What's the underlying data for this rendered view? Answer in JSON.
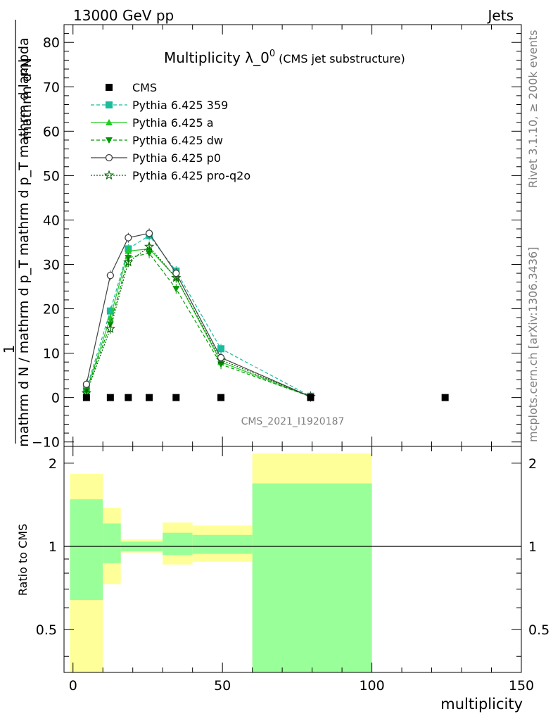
{
  "header": {
    "left": "13000 GeV pp",
    "right": "Jets"
  },
  "side_labels": {
    "rivet": "Rivet 3.1.10, ≥ 200k events",
    "mcplots": "mcplots.cern.ch [arXiv:1306.3436]"
  },
  "chart_data": {
    "type": "line",
    "title": "Multiplicity λ_0^0 (CMS jet substructure)",
    "title_main": "Multiplicity λ_0",
    "title_sup": "0",
    "title_sub": "(CMS jet substructure)",
    "analysis_id": "CMS_2021_I1920187",
    "xlabel": "multiplicity",
    "ylabel": "1 / mathrm d N / mathrm d p_T mathrm d p_T mathrm d lambda · mathrm d^2N",
    "ylabel_numerator": "mathrm d²N",
    "ylabel_denominator": "mathrm d N / mathrm d p_T mathrm d p_T mathrm d lambda",
    "ylabel_one": "1",
    "xlim": [
      -3,
      150
    ],
    "ylim": [
      -11,
      84
    ],
    "x_ticks": [
      0,
      50,
      100,
      150
    ],
    "y_ticks": [
      -10,
      0,
      10,
      20,
      30,
      40,
      50,
      60,
      70,
      80
    ],
    "x": [
      4.5,
      12.5,
      18.5,
      25.5,
      34.5,
      49.5,
      79.5
    ],
    "series": [
      {
        "name": "CMS",
        "color": "#000000",
        "marker": "square",
        "line": "none",
        "x": [
          4.5,
          12.5,
          18.5,
          25.5,
          34.5,
          49.5,
          79.5,
          124.5
        ],
        "values": [
          0,
          0,
          0,
          0,
          0,
          0,
          0,
          0
        ]
      },
      {
        "name": "Pythia 6.425 359",
        "color": "#1abc9c",
        "marker": "square",
        "line": "dashed",
        "values": [
          2.0,
          19.5,
          33.5,
          36.5,
          28.5,
          11.0,
          0.3
        ]
      },
      {
        "name": "Pythia 6.425 a",
        "color": "#22cc22",
        "marker": "triangle-up",
        "line": "solid",
        "values": [
          1.5,
          18.0,
          33.0,
          33.5,
          27.0,
          8.0,
          0.2
        ]
      },
      {
        "name": "Pythia 6.425 dw",
        "color": "#009900",
        "marker": "triangle-down",
        "line": "dashed",
        "values": [
          1.5,
          16.5,
          31.5,
          32.5,
          24.5,
          7.5,
          0.2
        ]
      },
      {
        "name": "Pythia 6.425 p0",
        "color": "#404040",
        "marker": "open-circle",
        "line": "solid",
        "values": [
          3.0,
          27.5,
          36.0,
          37.0,
          28.0,
          9.0,
          0.2
        ]
      },
      {
        "name": "Pythia 6.425 pro-q2o",
        "color": "#006600",
        "marker": "open-star",
        "line": "dotted",
        "values": [
          1.0,
          15.5,
          30.5,
          34.0,
          27.0,
          8.5,
          0.2
        ]
      }
    ],
    "ratio": {
      "ylabel": "Ratio to CMS",
      "ylim": [
        0.35,
        2.3
      ],
      "y_ticks": [
        0.5,
        1,
        2
      ],
      "y_tick_labels": [
        "0.5",
        "1",
        "2"
      ],
      "bins": [
        {
          "lo": -1,
          "hi": 10,
          "yellow": [
            0.3,
            1.83
          ],
          "green": [
            0.64,
            1.48
          ]
        },
        {
          "lo": 10,
          "hi": 16,
          "yellow": [
            0.73,
            1.38
          ],
          "green": [
            0.87,
            1.21
          ]
        },
        {
          "lo": 16,
          "hi": 30,
          "yellow": [
            0.95,
            1.06
          ],
          "green": [
            0.96,
            1.04
          ]
        },
        {
          "lo": 30,
          "hi": 40,
          "yellow": [
            0.86,
            1.22
          ],
          "green": [
            0.93,
            1.12
          ]
        },
        {
          "lo": 40,
          "hi": 60,
          "yellow": [
            0.88,
            1.19
          ],
          "green": [
            0.94,
            1.1
          ]
        },
        {
          "lo": 60,
          "hi": 100,
          "yellow": [
            0.2,
            2.17
          ],
          "green": [
            0.2,
            1.69
          ]
        }
      ]
    }
  }
}
